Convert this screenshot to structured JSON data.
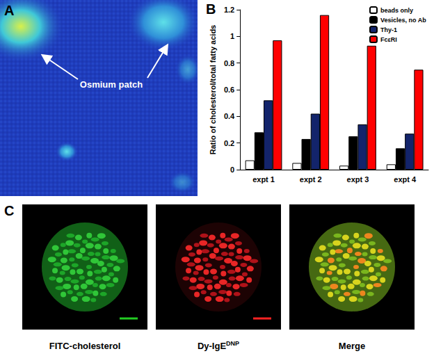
{
  "panel_a": {
    "label": "A",
    "annotation": "Osmium patch"
  },
  "panel_b": {
    "label": "B"
  },
  "chart_data": {
    "type": "bar",
    "y_label": "Ratio of cholesterol/total fatty acids",
    "categories": [
      "expt 1",
      "expt 2",
      "expt 3",
      "expt 4"
    ],
    "series": [
      {
        "name": "beads only",
        "color": "#ffffff",
        "values": [
          0.07,
          0.05,
          0.03,
          0.04
        ]
      },
      {
        "name": "Vesicles, no Ab",
        "color": "#000000",
        "values": [
          0.28,
          0.23,
          0.25,
          0.16
        ]
      },
      {
        "name": "Thy-1",
        "color": "#13246b",
        "values": [
          0.52,
          0.42,
          0.34,
          0.27
        ]
      },
      {
        "name": "FcεRI",
        "color": "#ff0000",
        "values": [
          0.97,
          1.16,
          0.93,
          0.75
        ]
      }
    ],
    "ylim": [
      0,
      1.2
    ],
    "yticks": [
      0,
      0.2,
      0.4,
      0.6,
      0.8,
      1,
      1.2
    ],
    "grid": false,
    "legend": "upper right"
  },
  "panel_c": {
    "label": "C",
    "captions": [
      {
        "text": "FITC-cholesterol"
      },
      {
        "text": "Dy-IgE",
        "superscript": "DNP"
      },
      {
        "text": "Merge"
      }
    ]
  }
}
